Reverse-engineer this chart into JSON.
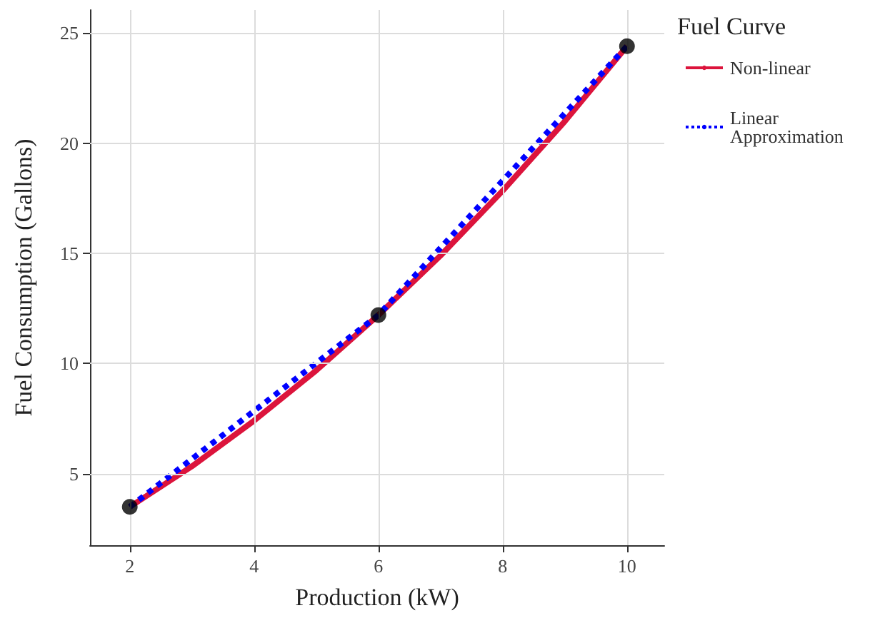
{
  "chart_data": {
    "type": "line",
    "xlabel": "Production (kW)",
    "ylabel": "Fuel Consumption (Gallons)",
    "legend_title": "Fuel Curve",
    "series": [
      {
        "name": "Non-linear",
        "color": "#dc143c",
        "line_style": "solid",
        "x": [
          2,
          3,
          4,
          5,
          6,
          7,
          8,
          9,
          10
        ],
        "values": [
          3.5,
          5.34,
          7.41,
          9.69,
          12.2,
          14.9,
          17.84,
          20.99,
          24.4
        ]
      },
      {
        "name": "Linear Approximation",
        "color": "#0000ff",
        "line_style": "dotted",
        "x": [
          2,
          6,
          10
        ],
        "values": [
          3.5,
          12.2,
          24.4
        ]
      },
      {
        "type": "scatter",
        "color": "#000000",
        "marker": "circle",
        "x": [
          2,
          6,
          10
        ],
        "values": [
          3.5,
          12.2,
          24.4
        ]
      }
    ],
    "xlim": [
      1.36,
      10.6
    ],
    "xticks": [
      2,
      4,
      6,
      8,
      10
    ],
    "ylim": [
      1.76,
      26.04
    ],
    "yticks": [
      5,
      10,
      15,
      20,
      25
    ],
    "grid": true,
    "legend": "right",
    "marker": "none"
  }
}
